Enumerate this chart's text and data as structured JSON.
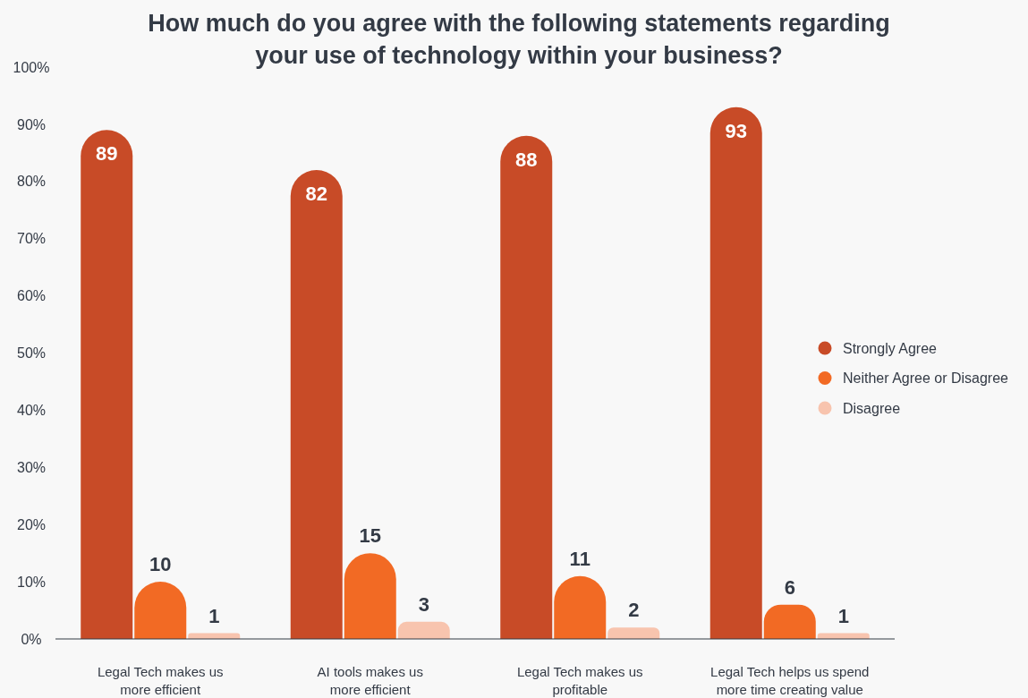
{
  "chart_data": {
    "type": "bar",
    "title": "How much do you agree with the following statements regarding\nyour use of technology within your business?",
    "categories": [
      "Legal Tech makes us\nmore efficient",
      "AI tools makes us\nmore efficient",
      "Legal Tech makes us\nprofitable",
      "Legal Tech helps us spend\nmore time creating value"
    ],
    "series": [
      {
        "name": "Strongly Agree",
        "color": "#c84b27",
        "values": [
          89,
          82,
          88,
          93
        ]
      },
      {
        "name": "Neither Agree or Disagree",
        "color": "#f26a24",
        "values": [
          10,
          15,
          11,
          6
        ]
      },
      {
        "name": "Disagree",
        "color": "#f8c4ae",
        "values": [
          1,
          3,
          2,
          1
        ]
      }
    ],
    "ylim": [
      0,
      100
    ],
    "yticks": [
      {
        "value": 0,
        "label": "0%"
      },
      {
        "value": 10,
        "label": "10%"
      },
      {
        "value": 20,
        "label": "20%"
      },
      {
        "value": 30,
        "label": "30%"
      },
      {
        "value": 40,
        "label": "40%"
      },
      {
        "value": 50,
        "label": "50%"
      },
      {
        "value": 60,
        "label": "60%"
      },
      {
        "value": 70,
        "label": "70%"
      },
      {
        "value": 80,
        "label": "80%"
      },
      {
        "value": 90,
        "label": "90%"
      },
      {
        "value": 100,
        "label": "100%"
      }
    ],
    "data_labels": true,
    "grid": false,
    "legend": "right"
  }
}
